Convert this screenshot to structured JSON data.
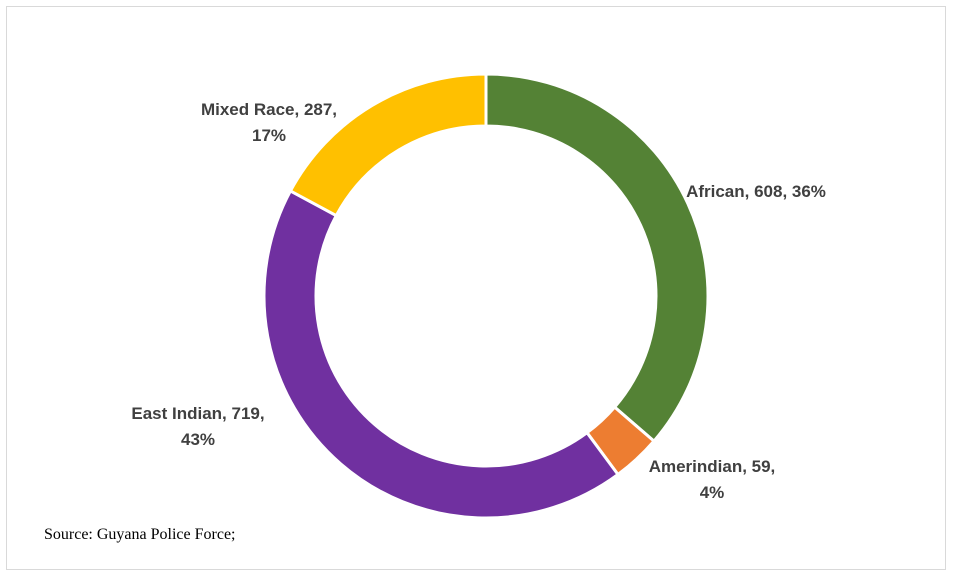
{
  "chart_data": {
    "type": "pie",
    "variant": "doughnut",
    "title": "",
    "slices": [
      {
        "category": "African",
        "value": 608,
        "percent": "36%",
        "color": "#548235",
        "label_lines": [
          "African, 608, 36%"
        ]
      },
      {
        "category": "Amerindian",
        "value": 59,
        "percent": "4%",
        "color": "#ED7D31",
        "label_lines": [
          "Amerindian, 59,",
          "4%"
        ]
      },
      {
        "category": "East Indian",
        "value": 719,
        "percent": "43%",
        "color": "#7030A0",
        "label_lines": [
          "East Indian, 719,",
          "43%"
        ]
      },
      {
        "category": "Mixed Race",
        "value": 287,
        "percent": "17%",
        "color": "#FFC000",
        "label_lines": [
          "Mixed Race, 287,",
          "17%"
        ]
      }
    ],
    "legend": "none"
  },
  "source_note": "Source: Guyana Police Force;"
}
